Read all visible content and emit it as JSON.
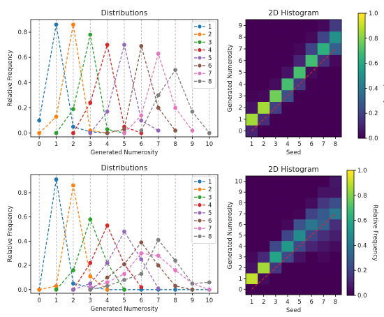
{
  "chart_data": [
    {
      "type": "line",
      "title": "Distributions",
      "xlabel": "Generated Numerosity",
      "ylabel": "Relative Frequency",
      "xlim": [
        -0.5,
        10.5
      ],
      "ylim": [
        -0.03,
        0.9
      ],
      "xticks": [
        "0",
        "1",
        "2",
        "3",
        "4",
        "5",
        "6",
        "7",
        "8",
        "9",
        "10"
      ],
      "yticks": [
        "0.0",
        "0.2",
        "0.4",
        "0.6",
        "0.8"
      ],
      "x": [
        0,
        1,
        2,
        3,
        4,
        5,
        6,
        7,
        8,
        9,
        10
      ],
      "legend_position": "top-right",
      "grid": "vertical dashed",
      "series": [
        {
          "name": "1",
          "color": "#1f77b4",
          "x": [
            0,
            1,
            2,
            3,
            4
          ],
          "values": [
            0.1,
            0.86,
            0.05,
            0.01,
            0.0
          ]
        },
        {
          "name": "2",
          "color": "#ff7f0e",
          "x": [
            0,
            1,
            2,
            3,
            4
          ],
          "values": [
            0.0,
            0.13,
            0.86,
            0.02,
            0.0
          ]
        },
        {
          "name": "3",
          "color": "#2ca02c",
          "x": [
            1,
            2,
            3,
            4,
            5
          ],
          "values": [
            0.0,
            0.19,
            0.78,
            0.03,
            0.0
          ]
        },
        {
          "name": "4",
          "color": "#d62728",
          "x": [
            2,
            3,
            4,
            5,
            6
          ],
          "values": [
            0.0,
            0.24,
            0.7,
            0.05,
            0.0
          ]
        },
        {
          "name": "5",
          "color": "#9467bd",
          "x": [
            3,
            4,
            5,
            6,
            7
          ],
          "values": [
            0.0,
            0.17,
            0.7,
            0.1,
            0.02
          ]
        },
        {
          "name": "6",
          "color": "#8c564b",
          "x": [
            4,
            5,
            6,
            7,
            8
          ],
          "values": [
            0.0,
            0.03,
            0.69,
            0.2,
            0.02
          ]
        },
        {
          "name": "7",
          "color": "#e377c2",
          "x": [
            5,
            6,
            7,
            8,
            9
          ],
          "values": [
            0.0,
            0.14,
            0.63,
            0.2,
            0.02
          ]
        },
        {
          "name": "8",
          "color": "#7f7f7f",
          "x": [
            6,
            7,
            8,
            9,
            10
          ],
          "values": [
            0.02,
            0.3,
            0.5,
            0.17,
            0.0
          ]
        }
      ]
    },
    {
      "type": "heatmap",
      "title": "2D Histogram",
      "xlabel": "Seed",
      "ylabel": "Generated Numerosity",
      "xticks": [
        "1",
        "2",
        "3",
        "4",
        "5",
        "6",
        "7",
        "8"
      ],
      "yticks": [
        "0",
        "1",
        "2",
        "3",
        "4",
        "5",
        "6",
        "7",
        "8",
        "9"
      ],
      "x": [
        1,
        2,
        3,
        4,
        5,
        6,
        7,
        8
      ],
      "y": [
        0,
        1,
        2,
        3,
        4,
        5,
        6,
        7,
        8,
        9
      ],
      "colorbar_label": "Relative Frequency",
      "colorbar_ticks": [
        "0.0",
        "0.2",
        "0.4",
        "0.6",
        "0.8",
        "1.0"
      ],
      "clim": [
        0,
        1
      ],
      "diagonal_line": true,
      "values": [
        [
          0.1,
          0.0,
          0.0,
          0.0,
          0.0,
          0.0,
          0.0,
          0.0
        ],
        [
          0.86,
          0.13,
          0.0,
          0.0,
          0.0,
          0.0,
          0.0,
          0.0
        ],
        [
          0.05,
          0.86,
          0.19,
          0.0,
          0.0,
          0.0,
          0.0,
          0.0
        ],
        [
          0.01,
          0.02,
          0.78,
          0.24,
          0.0,
          0.0,
          0.0,
          0.0
        ],
        [
          0.0,
          0.0,
          0.03,
          0.7,
          0.17,
          0.0,
          0.0,
          0.0
        ],
        [
          0.0,
          0.0,
          0.0,
          0.05,
          0.7,
          0.03,
          0.0,
          0.0
        ],
        [
          0.0,
          0.0,
          0.0,
          0.0,
          0.1,
          0.69,
          0.14,
          0.02
        ],
        [
          0.0,
          0.0,
          0.0,
          0.0,
          0.02,
          0.2,
          0.63,
          0.3
        ],
        [
          0.0,
          0.0,
          0.0,
          0.0,
          0.0,
          0.02,
          0.2,
          0.5
        ],
        [
          0.0,
          0.0,
          0.0,
          0.0,
          0.0,
          0.0,
          0.02,
          0.17
        ]
      ]
    },
    {
      "type": "line",
      "title": "Distributions",
      "xlabel": "Generated Numerosity",
      "ylabel": "Relative Frequency",
      "xlim": [
        -0.5,
        10.5
      ],
      "ylim": [
        -0.03,
        0.95
      ],
      "xticks": [
        "0",
        "1",
        "2",
        "3",
        "4",
        "5",
        "6",
        "7",
        "8",
        "9",
        "10"
      ],
      "yticks": [
        "0.0",
        "0.2",
        "0.4",
        "0.6",
        "0.8"
      ],
      "x": [
        0,
        1,
        2,
        3,
        4,
        5,
        6,
        7,
        8,
        9,
        10
      ],
      "legend_position": "top-right",
      "grid": "vertical dashed",
      "series": [
        {
          "name": "1",
          "color": "#1f77b4",
          "x": [
            0,
            1,
            2,
            3,
            4,
            5,
            6,
            7,
            8,
            9,
            10
          ],
          "values": [
            0.0,
            0.91,
            0.05,
            0.02,
            0.0,
            0.0,
            0.0,
            0.0,
            0.0,
            0.0,
            0.0
          ]
        },
        {
          "name": "2",
          "color": "#ff7f0e",
          "x": [
            0,
            1,
            2,
            3,
            4
          ],
          "values": [
            0.0,
            0.03,
            0.86,
            0.11,
            0.0
          ]
        },
        {
          "name": "3",
          "color": "#2ca02c",
          "x": [
            1,
            2,
            3,
            4,
            5
          ],
          "values": [
            0.0,
            0.16,
            0.58,
            0.22,
            0.0
          ]
        },
        {
          "name": "4",
          "color": "#d62728",
          "x": [
            2,
            3,
            4,
            5,
            6
          ],
          "values": [
            0.0,
            0.22,
            0.53,
            0.21,
            0.02
          ]
        },
        {
          "name": "5",
          "color": "#9467bd",
          "x": [
            2,
            3,
            4,
            5,
            6,
            7
          ],
          "values": [
            0.0,
            0.05,
            0.22,
            0.48,
            0.25,
            0.01
          ]
        },
        {
          "name": "6",
          "color": "#8c564b",
          "x": [
            3,
            4,
            5,
            6,
            7,
            8,
            9
          ],
          "values": [
            0.0,
            0.1,
            0.21,
            0.39,
            0.2,
            0.03,
            0.0
          ]
        },
        {
          "name": "7",
          "color": "#e377c2",
          "x": [
            3,
            4,
            5,
            6,
            7,
            8,
            9,
            10
          ],
          "values": [
            0.02,
            0.06,
            0.13,
            0.3,
            0.28,
            0.16,
            0.05,
            0.0
          ]
        },
        {
          "name": "8",
          "color": "#7f7f7f",
          "x": [
            3,
            4,
            5,
            6,
            7,
            8,
            9,
            10
          ],
          "values": [
            0.0,
            0.03,
            0.08,
            0.13,
            0.41,
            0.24,
            0.05,
            0.06
          ]
        }
      ]
    },
    {
      "type": "heatmap",
      "title": "2D Histogram",
      "xlabel": "Seed",
      "ylabel": "Generated Numerosity",
      "xticks": [
        "1",
        "2",
        "3",
        "4",
        "5",
        "6",
        "7",
        "8"
      ],
      "yticks": [
        "0",
        "1",
        "2",
        "3",
        "4",
        "5",
        "6",
        "7",
        "8",
        "9",
        "10"
      ],
      "x": [
        1,
        2,
        3,
        4,
        5,
        6,
        7,
        8
      ],
      "y": [
        0,
        1,
        2,
        3,
        4,
        5,
        6,
        7,
        8,
        9,
        10
      ],
      "colorbar_label": "Relative Frequency",
      "colorbar_ticks": [
        "0.0",
        "0.2",
        "0.4",
        "0.6",
        "0.8",
        "1.0"
      ],
      "clim": [
        0,
        1
      ],
      "diagonal_line": true,
      "values": [
        [
          0.0,
          0.0,
          0.0,
          0.0,
          0.0,
          0.0,
          0.0,
          0.0
        ],
        [
          0.91,
          0.03,
          0.0,
          0.0,
          0.0,
          0.0,
          0.0,
          0.0
        ],
        [
          0.05,
          0.86,
          0.16,
          0.0,
          0.0,
          0.0,
          0.0,
          0.0
        ],
        [
          0.02,
          0.11,
          0.58,
          0.22,
          0.05,
          0.0,
          0.02,
          0.0
        ],
        [
          0.0,
          0.0,
          0.22,
          0.53,
          0.22,
          0.1,
          0.06,
          0.03
        ],
        [
          0.0,
          0.0,
          0.0,
          0.21,
          0.48,
          0.21,
          0.13,
          0.08
        ],
        [
          0.0,
          0.0,
          0.0,
          0.02,
          0.25,
          0.39,
          0.3,
          0.13
        ],
        [
          0.0,
          0.0,
          0.0,
          0.0,
          0.01,
          0.2,
          0.28,
          0.41
        ],
        [
          0.0,
          0.0,
          0.0,
          0.0,
          0.0,
          0.03,
          0.16,
          0.24
        ],
        [
          0.0,
          0.0,
          0.0,
          0.0,
          0.0,
          0.0,
          0.05,
          0.05
        ],
        [
          0.0,
          0.0,
          0.0,
          0.0,
          0.0,
          0.0,
          0.0,
          0.06
        ]
      ]
    }
  ]
}
